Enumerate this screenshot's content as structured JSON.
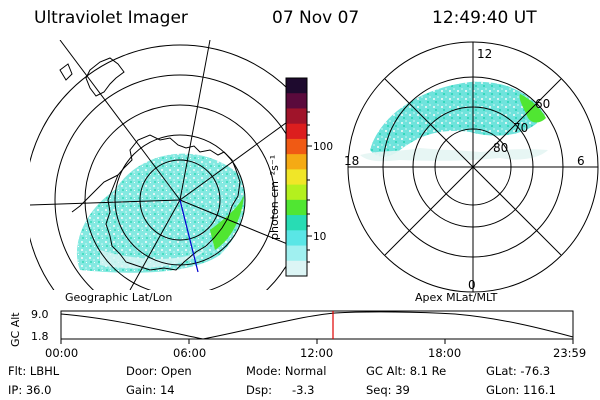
{
  "header": {
    "instrument": "Ultraviolet Imager",
    "date": "07 Nov 07",
    "time": "12:49:40 UT"
  },
  "colorbar": {
    "label": "photon cm⁻²s⁻¹",
    "ticks": [
      "100",
      "10"
    ],
    "colors": [
      "#1e0a2e",
      "#5a0a3c",
      "#a0142a",
      "#dc1e1e",
      "#f05a14",
      "#f5aa14",
      "#f0e628",
      "#b4f01e",
      "#50e632",
      "#28dcb4",
      "#5ae6e6",
      "#a0f0f0",
      "#dcf5f5"
    ]
  },
  "geo_panel": {
    "label": "Geographic Lat/Lon"
  },
  "mag_panel": {
    "label": "Apex  MLat/MLT",
    "mlt_labels": {
      "top": "12",
      "left": "18",
      "right": "6",
      "bottom": "0"
    },
    "lat_labels": [
      "60",
      "70",
      "80"
    ]
  },
  "altitude_plot": {
    "ylabel": "GC Alt",
    "y_ticks": [
      "9.0",
      "1.8"
    ],
    "x_ticks": [
      "00:00",
      "06:00",
      "12:00",
      "18:00",
      "23:59"
    ],
    "marker_color": "#e00000"
  },
  "status": {
    "flt": "Flt: LBHL",
    "ip": "IP: 36.0",
    "door": "Door: Open",
    "gain": "Gain: 14",
    "mode": "Mode: Normal",
    "dsp_label": "Dsp:",
    "dsp_value": "-3.3",
    "gc_alt": "GC Alt: 8.1 Re",
    "seq": "Seq: 39",
    "glat": "GLat: -76.3",
    "glon": "GLon: 116.1"
  }
}
